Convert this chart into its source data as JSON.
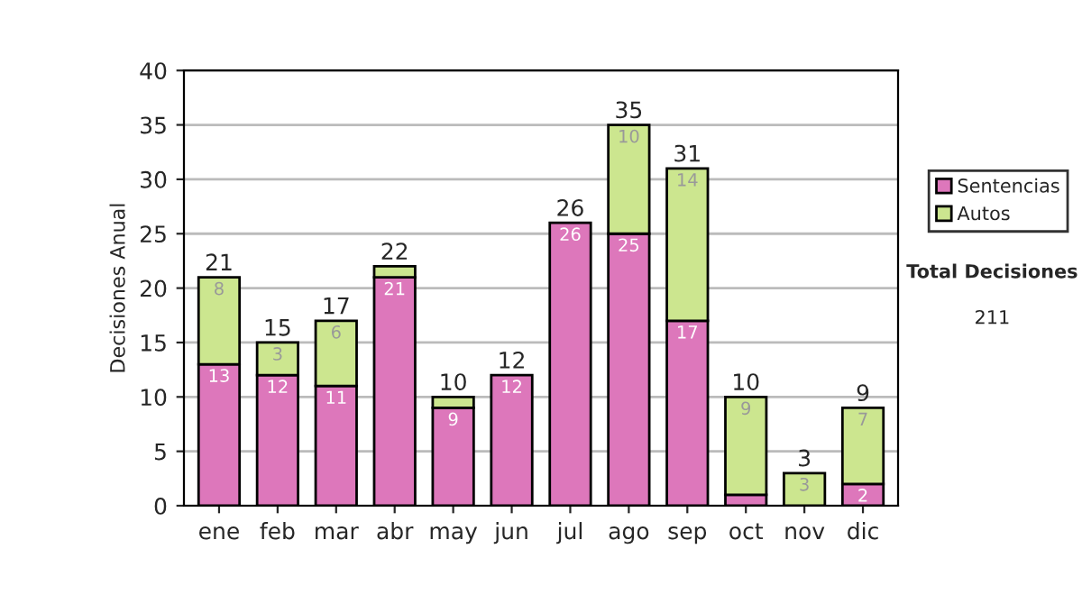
{
  "chart_data": {
    "type": "bar",
    "stacked": true,
    "ylabel": "Decisiones Anual",
    "categories": [
      "ene",
      "feb",
      "mar",
      "abr",
      "may",
      "jun",
      "jul",
      "ago",
      "sep",
      "oct",
      "nov",
      "dic"
    ],
    "series": [
      {
        "name": "Sentencias",
        "color": "#dd77bb",
        "values": [
          13,
          12,
          11,
          21,
          9,
          12,
          26,
          25,
          17,
          1,
          0,
          2
        ],
        "value_labels": [
          "13",
          "12",
          "11",
          "21",
          "9",
          "12",
          "26",
          "25",
          "17",
          null,
          null,
          "2"
        ]
      },
      {
        "name": "Autos",
        "color": "#cce68f",
        "values": [
          8,
          3,
          6,
          1,
          1,
          0,
          0,
          10,
          14,
          9,
          3,
          7
        ],
        "value_labels": [
          "8",
          "3",
          "6",
          null,
          null,
          null,
          null,
          "10",
          "14",
          "9",
          "3",
          "7"
        ]
      }
    ],
    "totals": [
      "21",
      "15",
      "17",
      "22",
      "10",
      "12",
      "26",
      "35",
      "31",
      "10",
      "3",
      "9"
    ],
    "ylim": [
      0,
      40
    ],
    "yticks": [
      0,
      5,
      10,
      15,
      20,
      25,
      30,
      35,
      40
    ],
    "grid": "y",
    "legend": "right",
    "annotations": [
      "Total Decisiones",
      "211"
    ]
  }
}
